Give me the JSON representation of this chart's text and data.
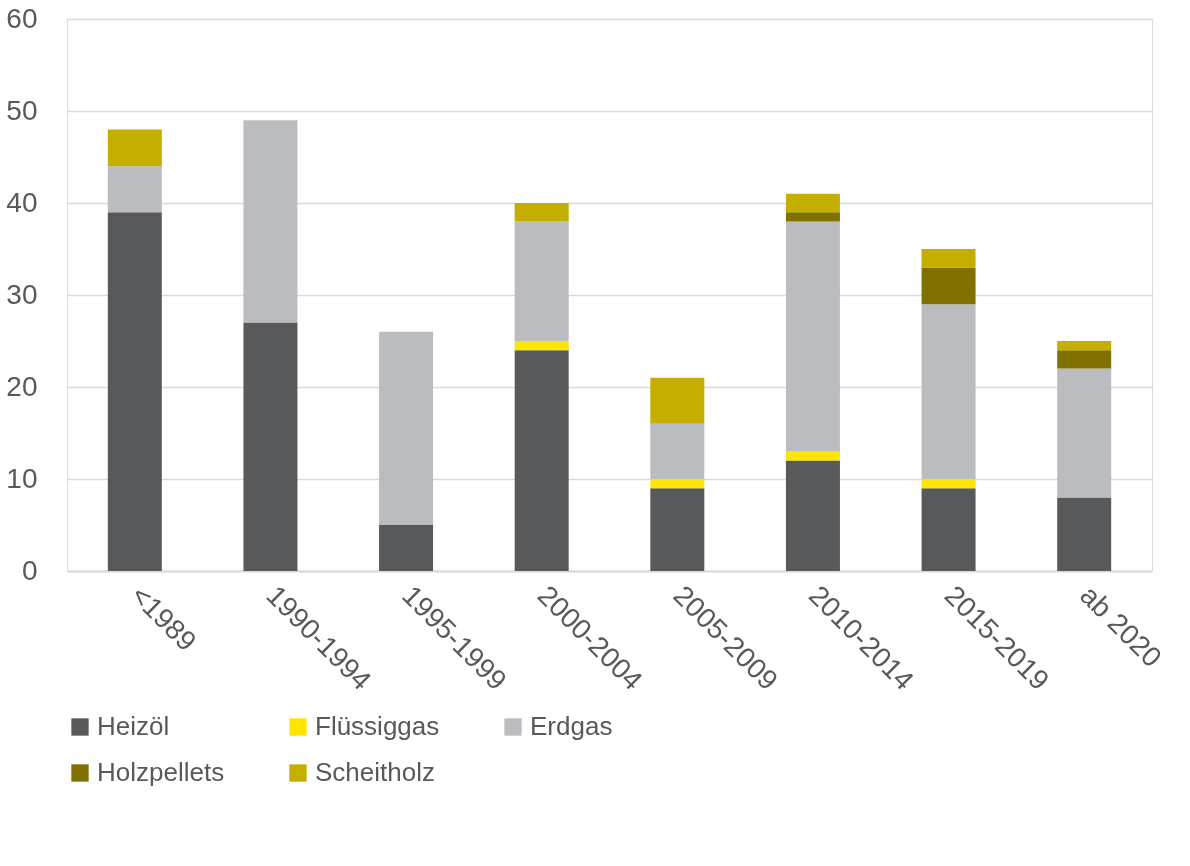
{
  "chart_data": {
    "type": "bar",
    "stacked": true,
    "categories": [
      "<1989",
      "1990-1994",
      "1995-1999",
      "2000-2004",
      "2005-2009",
      "2010-2014",
      "2015-2019",
      "ab 2020"
    ],
    "series": [
      {
        "name": "Heizöl",
        "color": "#58595b",
        "values": [
          39,
          27,
          5,
          24,
          9,
          12,
          9,
          8
        ]
      },
      {
        "name": "Flüssiggas",
        "color": "#ffe600",
        "values": [
          0,
          0,
          0,
          1,
          1,
          1,
          1,
          0
        ]
      },
      {
        "name": "Erdgas",
        "color": "#bbbcbf",
        "values": [
          5,
          22,
          21,
          13,
          6,
          25,
          19,
          14
        ]
      },
      {
        "name": "Holzpellets",
        "color": "#7f7000",
        "values": [
          0,
          0,
          0,
          0,
          0,
          1,
          4,
          2
        ]
      },
      {
        "name": "Scheitholz",
        "color": "#c4ae00",
        "values": [
          4,
          0,
          0,
          2,
          5,
          2,
          2,
          1
        ]
      }
    ],
    "ylim": [
      0,
      60
    ],
    "yticks": [
      0,
      10,
      20,
      30,
      40,
      50,
      60
    ],
    "grid": "y",
    "legend": "bottom"
  }
}
